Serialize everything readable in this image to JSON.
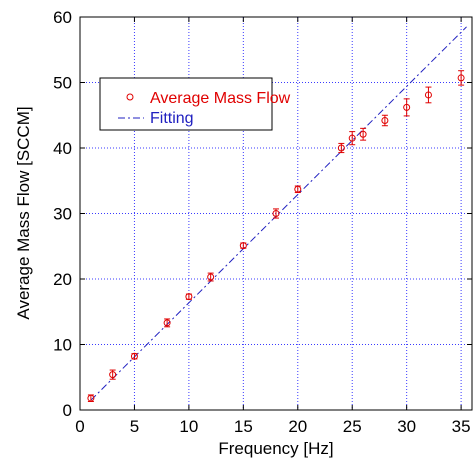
{
  "chart_data": {
    "type": "scatter",
    "xlabel": "Frequency [Hz]",
    "ylabel": "Average Mass Flow [SCCM]",
    "xlim": [
      0,
      36
    ],
    "ylim": [
      0,
      60
    ],
    "xticks": [
      0,
      5,
      10,
      15,
      20,
      25,
      30,
      35
    ],
    "yticks": [
      0,
      10,
      20,
      30,
      40,
      50,
      60
    ],
    "grid": true,
    "legend_position": "top-left",
    "series": [
      {
        "name": "Average Mass Flow",
        "kind": "scatter-errorbar",
        "marker": "open-circle",
        "color": "#e00000",
        "x": [
          1,
          3,
          5,
          8,
          10,
          12,
          15,
          18,
          20,
          24,
          25,
          26,
          28,
          30,
          32,
          35
        ],
        "y": [
          1.8,
          5.4,
          8.2,
          13.3,
          17.3,
          20.3,
          25.1,
          30.0,
          33.7,
          40.0,
          41.5,
          42.1,
          44.2,
          46.2,
          48.1,
          50.7
        ],
        "err": [
          0.5,
          0.7,
          0.4,
          0.6,
          0.4,
          0.6,
          0.4,
          0.7,
          0.5,
          0.7,
          1.0,
          0.9,
          0.8,
          1.3,
          1.2,
          1.1
        ]
      },
      {
        "name": "Fitting",
        "kind": "line",
        "style": "dash-dot",
        "color": "#2020c0",
        "x": [
          1,
          35.5
        ],
        "y": [
          1.5,
          58.5
        ]
      }
    ]
  }
}
